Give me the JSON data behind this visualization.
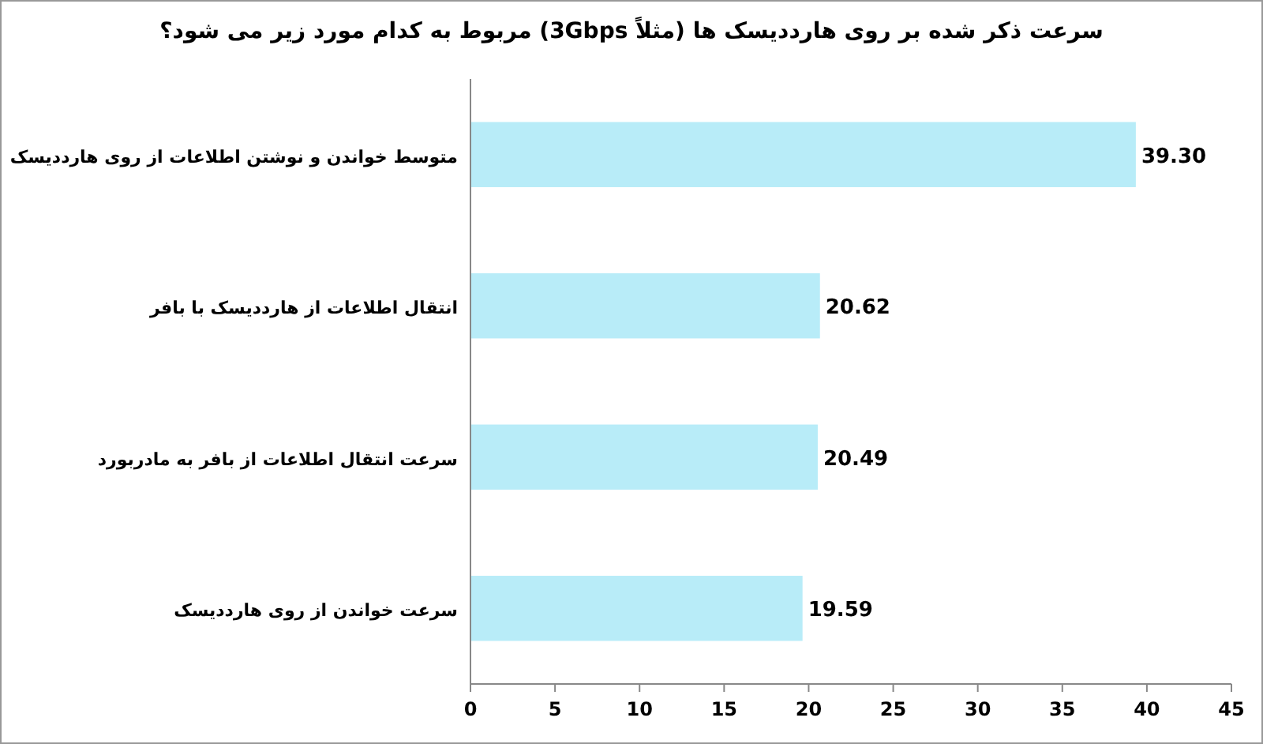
{
  "chart_data": {
    "type": "bar",
    "orientation": "horizontal",
    "title": "سرعت ذکر شده بر روی هارددیسک ها (مثلاً 3Gbps) مربوط به کدام مورد زیر می شود؟",
    "categories": [
      "متوسط خواندن و نوشتن اطلاعات از روی هارددیسک",
      "انتقال اطلاعات از هارددیسک با بافر",
      "سرعت انتقال اطلاعات از بافر به مادربورد",
      "سرعت خواندن از روی هارددیسک"
    ],
    "values": [
      39.3,
      20.62,
      20.49,
      19.59
    ],
    "value_labels": [
      "39.30",
      "20.62",
      "20.49",
      "19.59"
    ],
    "color": "#b8ecf8",
    "xlim": [
      0,
      45
    ],
    "xticks": [
      0,
      5,
      10,
      15,
      20,
      25,
      30,
      35,
      40,
      45
    ]
  }
}
